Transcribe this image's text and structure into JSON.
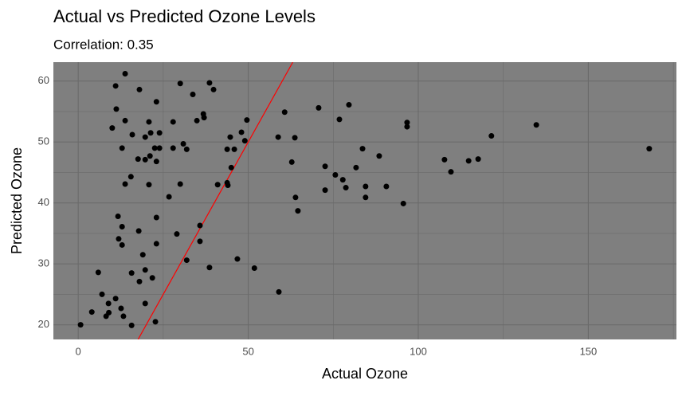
{
  "chart_data": {
    "type": "scatter",
    "title": "Actual vs Predicted Ozone Levels",
    "subtitle": "Correlation: 0.35",
    "x_label": "Actual Ozone",
    "y_label": "Predicted Ozone",
    "xlim": [
      -7.3,
      175.9
    ],
    "ylim": [
      17.6,
      63.1
    ],
    "xticks": [
      0,
      50,
      100,
      150
    ],
    "yticks": [
      20,
      30,
      40,
      50,
      60
    ],
    "x_minor_grid": [
      25,
      75,
      125,
      175
    ],
    "y_minor_grid": [
      25,
      35,
      45,
      55
    ],
    "grid": true,
    "panel_color": "#7f7f7f",
    "grid_color": "#6b6b6b",
    "color": "#000000",
    "identity_line": true,
    "identity_line_color": "#ff0000",
    "x": [
      0.7,
      4,
      5.9,
      7,
      8.2,
      8.9,
      9,
      10,
      11,
      11,
      11.2,
      11.7,
      11.9,
      12.6,
      12.9,
      12.9,
      12.9,
      13.3,
      13.8,
      13.8,
      13.8,
      15.5,
      15.7,
      15.7,
      15.9,
      17.6,
      18,
      17.8,
      18,
      19,
      19.7,
      19.7,
      19.7,
      19.7,
      20.8,
      20.8,
      21.1,
      21.3,
      21.8,
      22.5,
      23,
      23,
      23,
      23,
      22.7,
      23.9,
      23.9,
      26.7,
      27.9,
      27.9,
      29,
      30,
      30,
      30.9,
      31.9,
      31.9,
      33.7,
      34.9,
      35.8,
      35.8,
      36.8,
      37,
      38.6,
      38.6,
      39.8,
      41,
      43.8,
      44,
      43.8,
      44.7,
      45,
      45.9,
      46.8,
      48,
      49,
      49.6,
      51.8,
      58.8,
      59,
      60.7,
      62.8,
      63.7,
      63.9,
      64.6,
      70.7,
      72.6,
      72.6,
      75.6,
      76.8,
      77.8,
      78.7,
      79.6,
      81.7,
      83.6,
      84.5,
      84.5,
      88.5,
      90.6,
      95.6,
      96.7,
      96.7,
      107.7,
      109.6,
      114.8,
      117.6,
      121.5,
      134.7,
      167.9
    ],
    "values": [
      20,
      22.1,
      28.6,
      25,
      21.4,
      23.5,
      22,
      52.3,
      24.3,
      59.2,
      55.4,
      37.8,
      34.1,
      22.7,
      49,
      36.1,
      33.1,
      21.4,
      61.2,
      53.5,
      43.1,
      44.3,
      28.5,
      19.9,
      51.2,
      47.2,
      58.6,
      35.4,
      27.1,
      31.5,
      23.5,
      29,
      47.1,
      50.8,
      53.3,
      43,
      47.7,
      51.5,
      27.7,
      49,
      56.6,
      46.8,
      37.6,
      33.3,
      20.5,
      51.5,
      49,
      41,
      49,
      53.3,
      34.9,
      59.6,
      43.1,
      49.7,
      48.8,
      30.6,
      57.8,
      53.5,
      36.3,
      33.7,
      54.6,
      54,
      59.7,
      29.4,
      58.6,
      43,
      43.3,
      42.9,
      48.8,
      50.8,
      45.8,
      48.8,
      30.8,
      51.6,
      50.2,
      53.6,
      29.3,
      50.8,
      25.4,
      54.9,
      46.7,
      50.7,
      40.9,
      38.7,
      55.6,
      46,
      42.1,
      44.6,
      53.7,
      43.8,
      42.5,
      56.1,
      45.8,
      48.9,
      42.7,
      40.9,
      47.7,
      42.7,
      39.9,
      53.2,
      52.5,
      47.1,
      45.1,
      46.9,
      47.2,
      51,
      52.8,
      48.9
    ]
  }
}
